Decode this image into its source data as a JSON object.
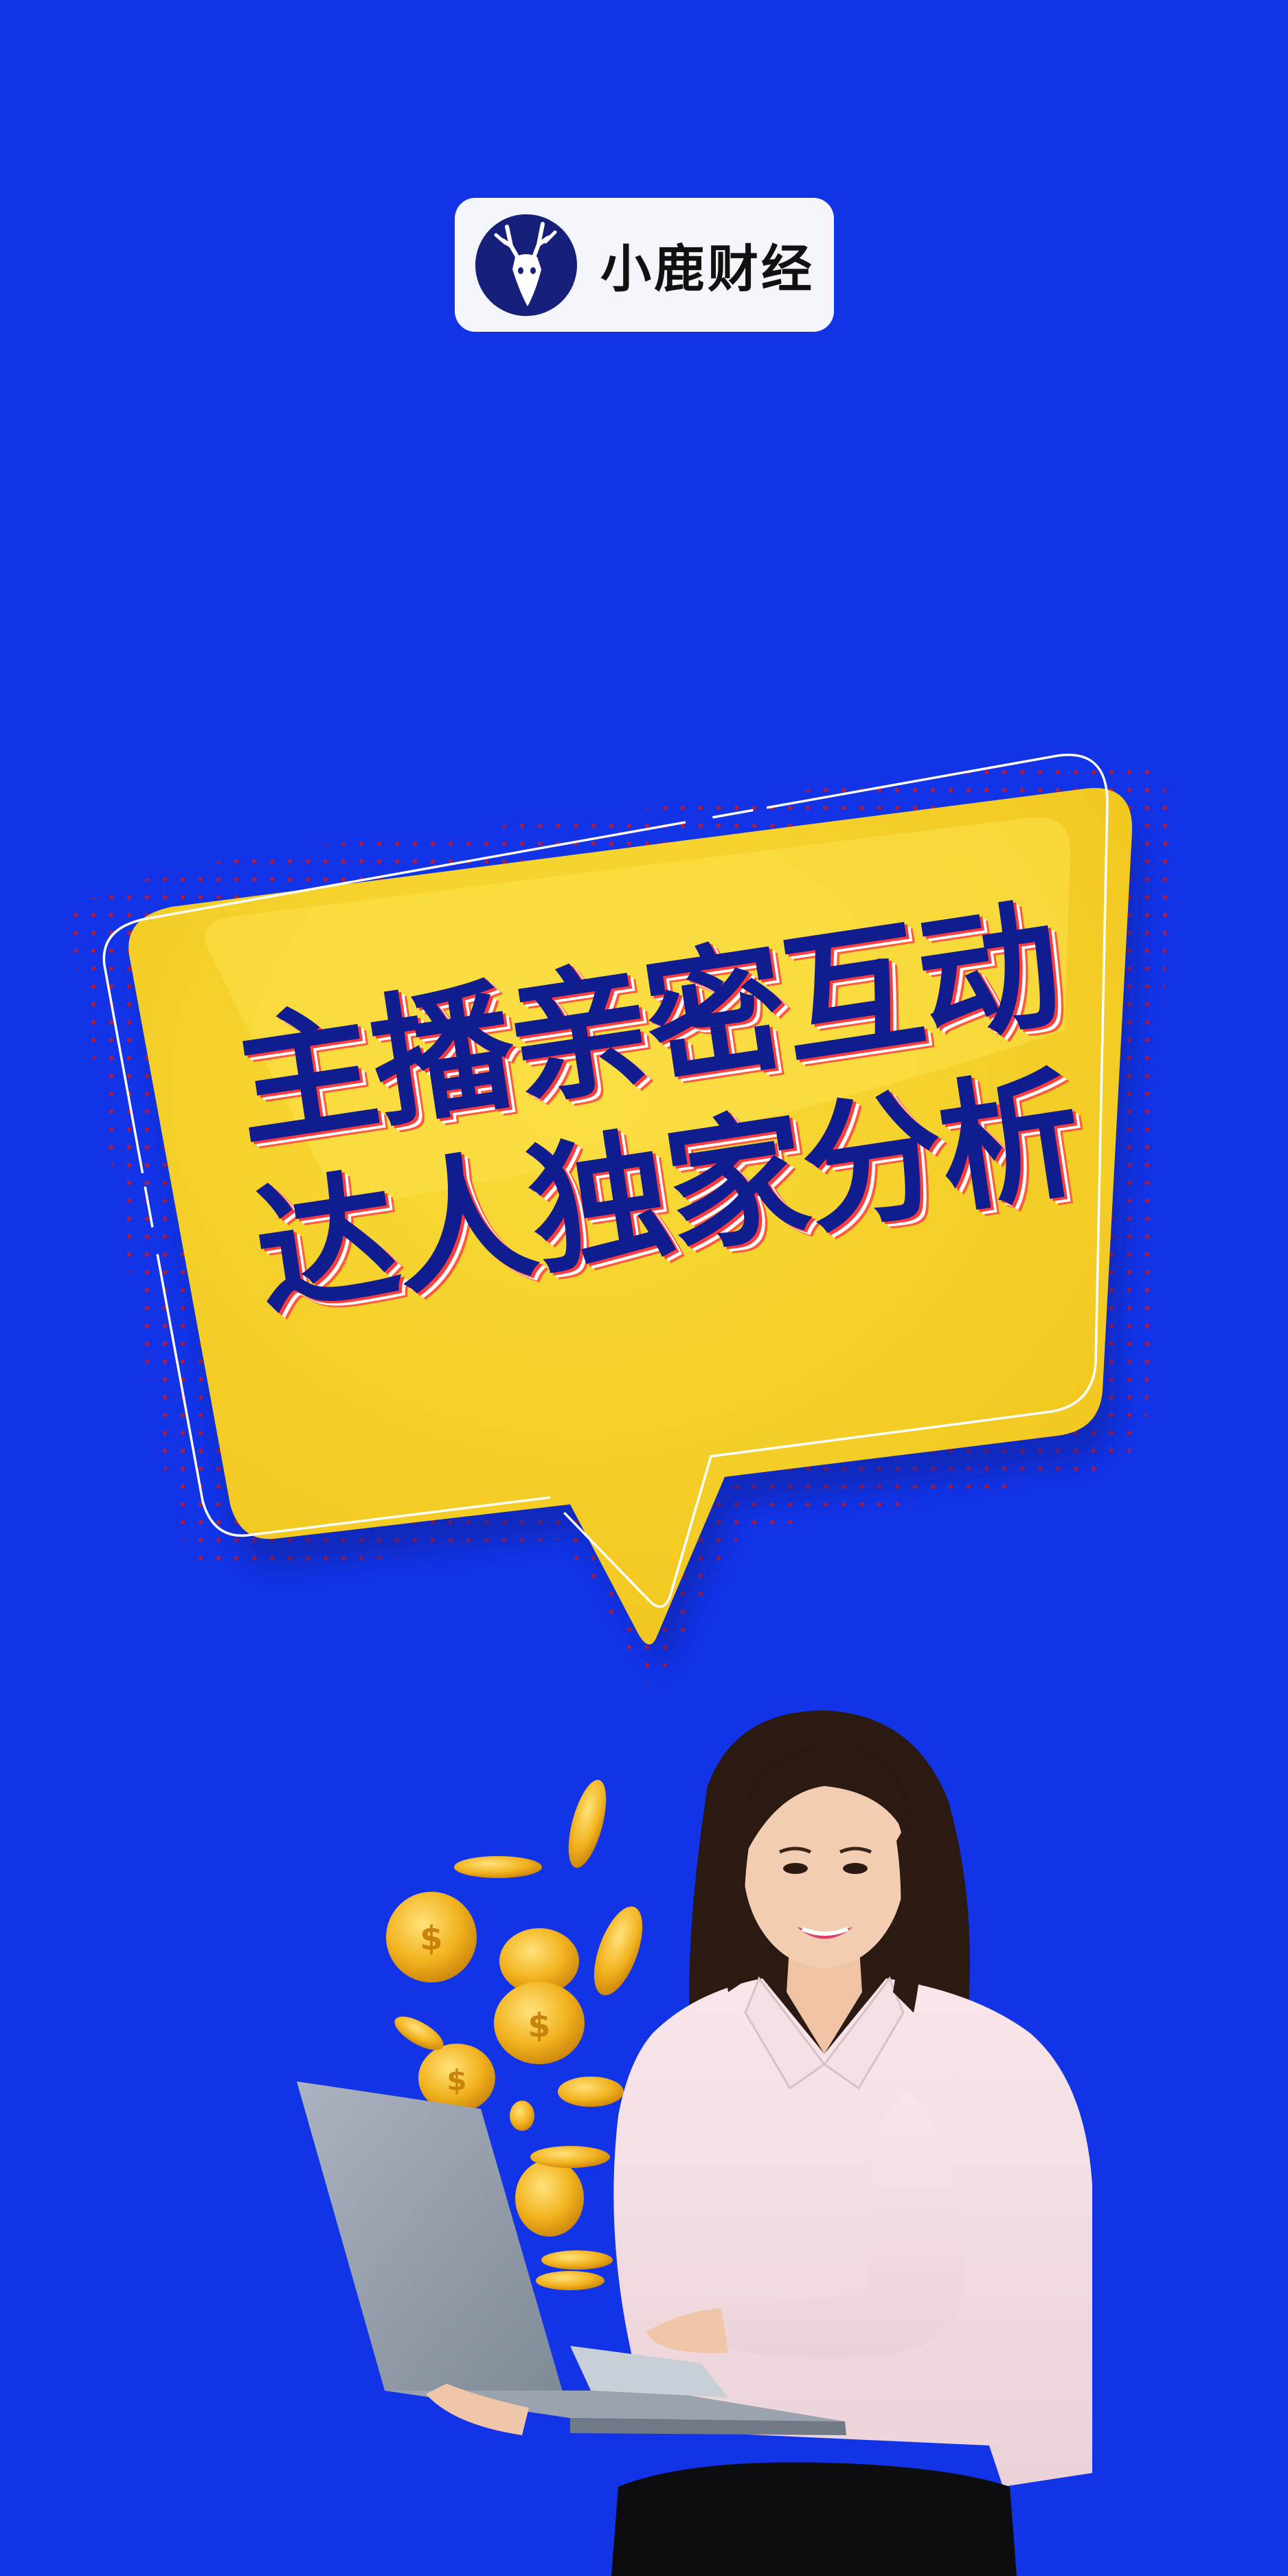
{
  "brand": {
    "name": "小鹿财经",
    "logo_icon": "deer-head-icon"
  },
  "headline": {
    "line1": "主播亲密互动",
    "line2": "达人独家分析"
  },
  "colors": {
    "background": "#1234e6",
    "bubble_yellow": "#f5cf24",
    "headline_text": "#0f1d8f",
    "headline_outline": "#ff3b3b"
  },
  "illustration": {
    "subject": "woman-with-laptop",
    "accent": "gold-coins"
  }
}
